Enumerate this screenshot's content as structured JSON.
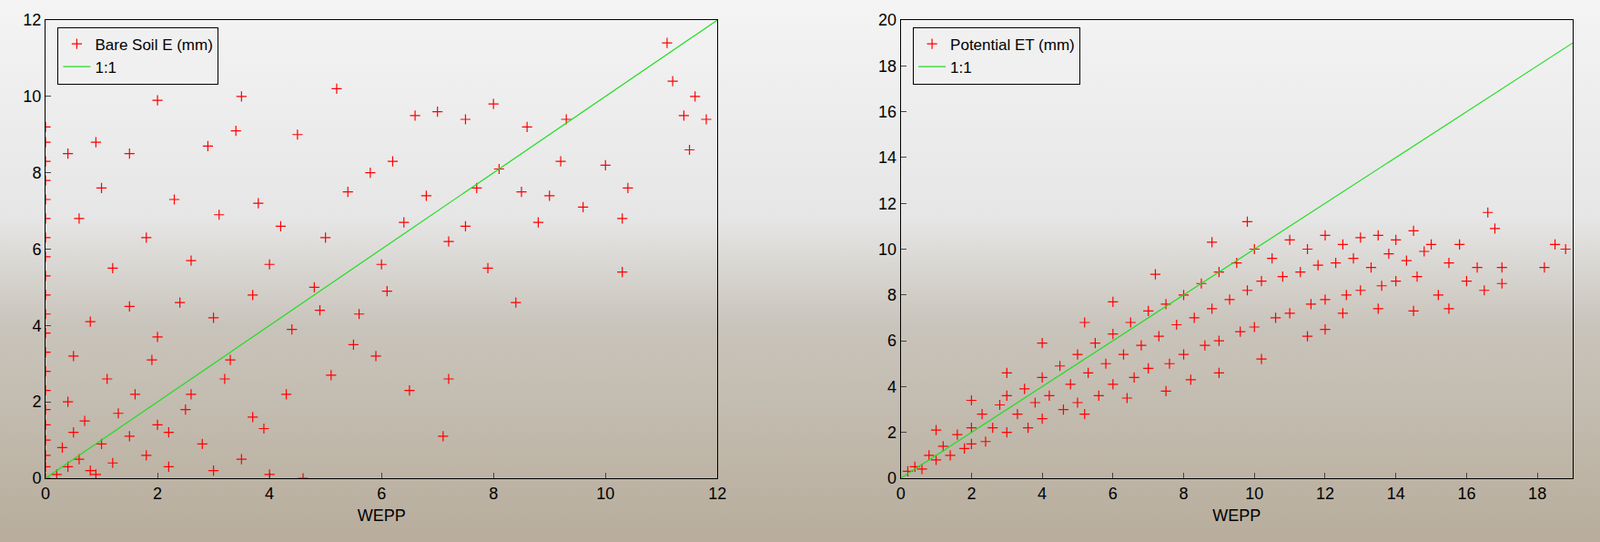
{
  "chart_data": [
    {
      "type": "scatter",
      "x_label": "WEPP",
      "xlim": [
        0,
        12
      ],
      "ylim": [
        0,
        12
      ],
      "xticks": [
        0,
        2,
        4,
        6,
        8,
        10,
        12
      ],
      "yticks": [
        0,
        2,
        4,
        6,
        8,
        10,
        12
      ],
      "grid": false,
      "legend": "upper left",
      "series": [
        {
          "name": "Bare Soil E (mm)",
          "color": "#ff0000",
          "marker": "+",
          "x": [
            0,
            0,
            0,
            0,
            0,
            0,
            0,
            0,
            0,
            0,
            0,
            0,
            0,
            0,
            0,
            0,
            0,
            0,
            0,
            0,
            0,
            0.2,
            0.4,
            0.3,
            0.6,
            0.8,
            1,
            0.5,
            1.2,
            1.5,
            0.7,
            1.8,
            2,
            0.9,
            1.3,
            2.2,
            2.5,
            1.6,
            0.4,
            3,
            3.5,
            4,
            4.6,
            2.8,
            1.1,
            0.5,
            0.8,
            1.2,
            0.6,
            1,
            0.4,
            0.9,
            1.5,
            2,
            3.5,
            5.2,
            2.9,
            3.4,
            4.5,
            1.8,
            2.3,
            2.6,
            3.1,
            3.8,
            4.2,
            1.5,
            2,
            2.4,
            3,
            3.3,
            3.7,
            4,
            4.4,
            4.8,
            5,
            5.4,
            5.8,
            6.2,
            6.6,
            7,
            7.5,
            8,
            8.6,
            9.3,
            5.6,
            6,
            6.4,
            6.8,
            7.2,
            7.7,
            8.1,
            8.5,
            9,
            9.6,
            10,
            10.4,
            10.3,
            10.3,
            11.2,
            11.4,
            11.5,
            11.8,
            11.6,
            11.1,
            7.9,
            8.4,
            6.5,
            7.1,
            7.2,
            5.1,
            5.5,
            4.3,
            3.7,
            2.6,
            1.9,
            3.2,
            4.9,
            6.1,
            7.5,
            2.2,
            3.9,
            5.9,
            9.2,
            8.8
          ],
          "values": [
            0,
            0.3,
            0.6,
            1,
            1.4,
            1.8,
            2.3,
            2.8,
            3.3,
            3.8,
            4.3,
            4.8,
            5.3,
            5.8,
            6.3,
            6.8,
            7.3,
            7.8,
            8.3,
            8.8,
            9.2,
            0.1,
            0.3,
            0.8,
            0.5,
            0.2,
            0.9,
            1.2,
            0.4,
            1.1,
            1.5,
            0.6,
            1.4,
            0.1,
            1.7,
            0.3,
            1.8,
            2.2,
            2,
            0.2,
            0.5,
            0.1,
            0,
            0.9,
            2.6,
            3.2,
            4.1,
            5.5,
            6.8,
            7.6,
            8.5,
            8.8,
            8.5,
            9.9,
            10,
            10.2,
            8.7,
            9.1,
            9,
            6.3,
            7.3,
            5.7,
            6.9,
            7.2,
            6.6,
            4.5,
            3.7,
            4.6,
            4.2,
            3.1,
            4.8,
            5.6,
            3.9,
            5,
            6.3,
            7.5,
            8,
            8.3,
            9.5,
            9.6,
            9.4,
            9.8,
            9.2,
            9.4,
            4.3,
            5.6,
            6.7,
            7.4,
            6.2,
            7.6,
            8.1,
            7.5,
            7.4,
            7.1,
            8.2,
            7.6,
            5.4,
            6.8,
            10.4,
            9.5,
            8.6,
            9.4,
            10,
            11.4,
            5.5,
            4.6,
            2.3,
            1.1,
            2.6,
            2.7,
            3.5,
            2.2,
            1.6,
            2.2,
            3.1,
            2.6,
            4.4,
            4.9,
            6.6,
            1.2,
            1.3,
            3.2,
            8.3,
            6.7
          ]
        },
        {
          "name": "1:1",
          "type": "line",
          "color": "#22dd22",
          "x": [
            0,
            12
          ],
          "values": [
            0,
            12
          ]
        }
      ]
    },
    {
      "type": "scatter",
      "x_label": "WEPP",
      "xlim": [
        0,
        19
      ],
      "ylim": [
        0,
        20
      ],
      "xticks": [
        0,
        2,
        4,
        6,
        8,
        10,
        12,
        14,
        16,
        18
      ],
      "yticks": [
        0,
        2,
        4,
        6,
        8,
        10,
        12,
        14,
        16,
        18,
        20
      ],
      "grid": false,
      "legend": "upper left",
      "series": [
        {
          "name": "Potential ET (mm)",
          "color": "#ff0000",
          "marker": "+",
          "x": [
            0.2,
            0.4,
            0.6,
            0.8,
            1,
            1.2,
            1.4,
            1.6,
            1.8,
            2,
            2,
            2.3,
            2.4,
            2.6,
            2.8,
            3,
            3,
            3.3,
            3.5,
            3.6,
            3.8,
            4,
            4,
            4.2,
            4.5,
            4.6,
            4.8,
            5,
            5,
            5.3,
            5.5,
            5.6,
            5.8,
            6,
            6,
            6.3,
            6.5,
            6.6,
            6.8,
            7,
            7,
            7.3,
            7.5,
            7.6,
            7.8,
            8,
            8,
            8.3,
            8.5,
            8.6,
            8.8,
            9,
            9,
            9.3,
            9.5,
            9.6,
            9.8,
            10,
            10,
            10.2,
            10.5,
            10.6,
            10.8,
            11,
            11,
            11.3,
            11.5,
            11.6,
            11.8,
            12,
            12,
            12.3,
            12.5,
            12.6,
            12.8,
            13,
            13,
            13.3,
            13.5,
            13.6,
            13.8,
            14,
            14,
            14.3,
            14.5,
            14.6,
            14.8,
            15,
            15.2,
            15.5,
            15.8,
            16,
            16.3,
            16.5,
            16.6,
            16.8,
            17,
            17,
            18.2,
            18.5,
            18.8,
            9,
            8.2,
            10.2,
            7.5,
            6.4,
            5.2,
            11.5,
            12.5,
            9.8,
            8.8,
            7.2,
            6,
            5.2,
            4,
            3,
            2,
            1,
            13.5,
            12,
            14.5,
            15.5
          ],
          "values": [
            0.3,
            0.5,
            0.4,
            1,
            0.8,
            1.4,
            1,
            1.9,
            1.3,
            2.2,
            1.5,
            2.8,
            1.6,
            2.2,
            3.2,
            2,
            3.6,
            2.8,
            3.9,
            2.2,
            3.3,
            4.4,
            2.6,
            3.6,
            4.9,
            3,
            4.1,
            5.4,
            3.3,
            4.6,
            5.9,
            3.6,
            5,
            6.3,
            4.1,
            5.4,
            6.8,
            4.4,
            5.8,
            7.3,
            4.8,
            6.2,
            7.6,
            5,
            6.7,
            8,
            5.4,
            7,
            8.5,
            5.8,
            7.4,
            9,
            6,
            7.8,
            9.4,
            6.4,
            8.2,
            10,
            6.6,
            8.6,
            9.6,
            7,
            8.8,
            10.4,
            7.2,
            9,
            10,
            7.6,
            9.3,
            10.6,
            7.8,
            9.4,
            10.2,
            8,
            9.6,
            10.5,
            8.2,
            9.2,
            10.6,
            8.4,
            9.8,
            10.4,
            8.6,
            9.5,
            10.8,
            8.8,
            9.9,
            10.2,
            8,
            9.4,
            10.2,
            8.6,
            9.2,
            8.2,
            11.6,
            10.9,
            9.2,
            8.5,
            9.2,
            10.2,
            10,
            4.6,
            4.3,
            5.2,
            3.8,
            3.5,
            2.8,
            6.2,
            7.2,
            11.2,
            10.3,
            8.9,
            7.7,
            6.8,
            5.9,
            4.6,
            3.4,
            2.1,
            7.4,
            6.5,
            7.3,
            7.4
          ]
        },
        {
          "name": "1:1",
          "type": "line",
          "color": "#22dd22",
          "x": [
            0,
            19
          ],
          "values": [
            0,
            19
          ]
        }
      ]
    }
  ]
}
